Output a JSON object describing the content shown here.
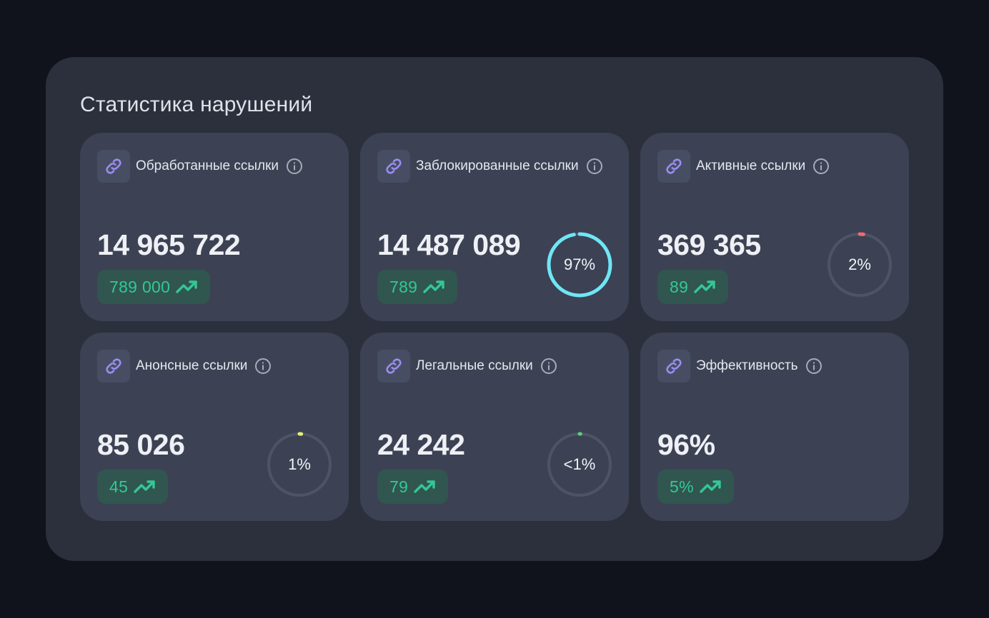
{
  "title": "Статистика нарушений",
  "colors": {
    "accent_icon": "#9b8cf0",
    "delta_text": "#34c796",
    "ring_track": "#4d5466"
  },
  "cards": [
    {
      "label": "Обработанные ссылки",
      "value": "14 965 722",
      "delta": "789 000",
      "icon": "link-icon"
    },
    {
      "label": "Заблокированные ссылки",
      "value": "14 487 089",
      "delta": "789",
      "ring": {
        "text": "97%",
        "percent": 97,
        "color": "#6fe6f5"
      },
      "icon": "link-icon"
    },
    {
      "label": "Активные ссылки",
      "value": "369 365",
      "delta": "89",
      "ring": {
        "text": "2%",
        "percent": 2,
        "color": "#f06a72"
      },
      "icon": "link-icon"
    },
    {
      "label": "Анонсные ссылки",
      "value": "85 026",
      "delta": "45",
      "ring": {
        "text": "1%",
        "percent": 1,
        "color": "#e3f07a"
      },
      "icon": "link-icon"
    },
    {
      "label": "Легальные ссылки",
      "value": "24 242",
      "delta": "79",
      "ring": {
        "text": "<1%",
        "percent": 0.5,
        "color": "#5ed07a"
      },
      "icon": "link-icon"
    },
    {
      "label": "Эффективность",
      "value": "96%",
      "delta": "5%",
      "icon": "link-icon"
    }
  ]
}
